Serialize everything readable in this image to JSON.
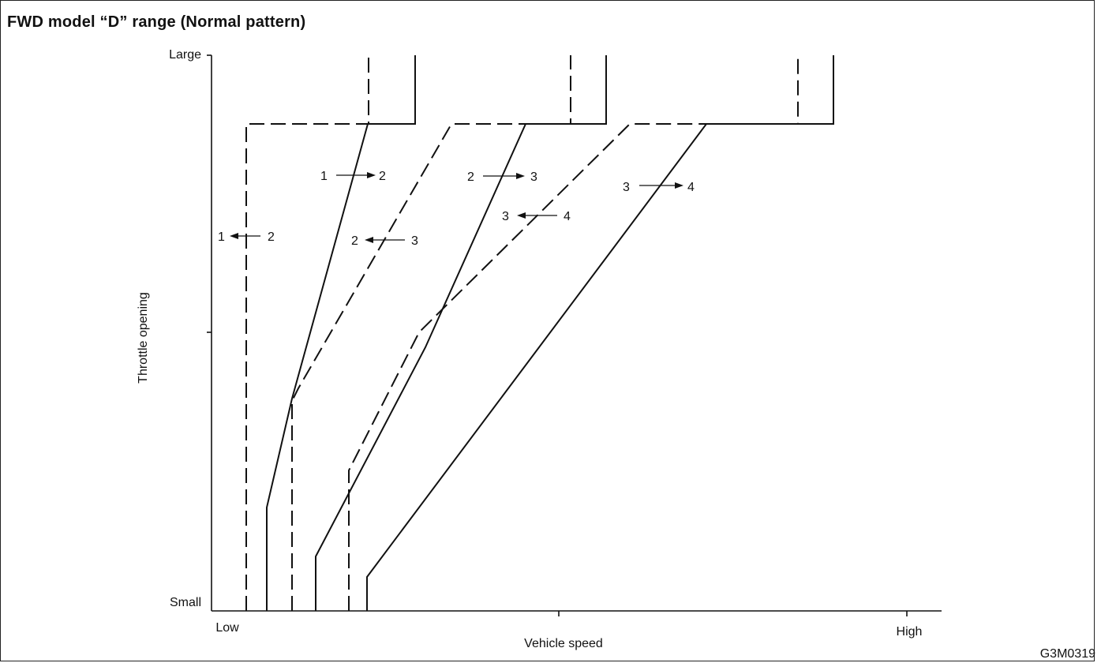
{
  "title": "FWD model “D” range (Normal pattern)",
  "figure_code": "G3M0319",
  "axes": {
    "x_label": "Vehicle speed",
    "y_label": "Throttle opening",
    "x_ticks": {
      "low": "Low",
      "high": "High"
    },
    "y_ticks": {
      "large": "Large",
      "small": "Small"
    }
  },
  "shift_labels": {
    "up_1_2": {
      "from": "1",
      "to": "2"
    },
    "down_2_1": {
      "from": "1",
      "to": "2"
    },
    "up_2_3": {
      "from": "2",
      "to": "3"
    },
    "down_3_2": {
      "from": "2",
      "to": "3"
    },
    "up_3_4": {
      "from": "3",
      "to": "4"
    },
    "down_4_3": {
      "from": "3",
      "to": "4"
    }
  },
  "legend_style": {
    "upshift": "solid",
    "downshift": "dashed"
  },
  "colors": {
    "line": "#111111",
    "background": "#ffffff"
  }
}
